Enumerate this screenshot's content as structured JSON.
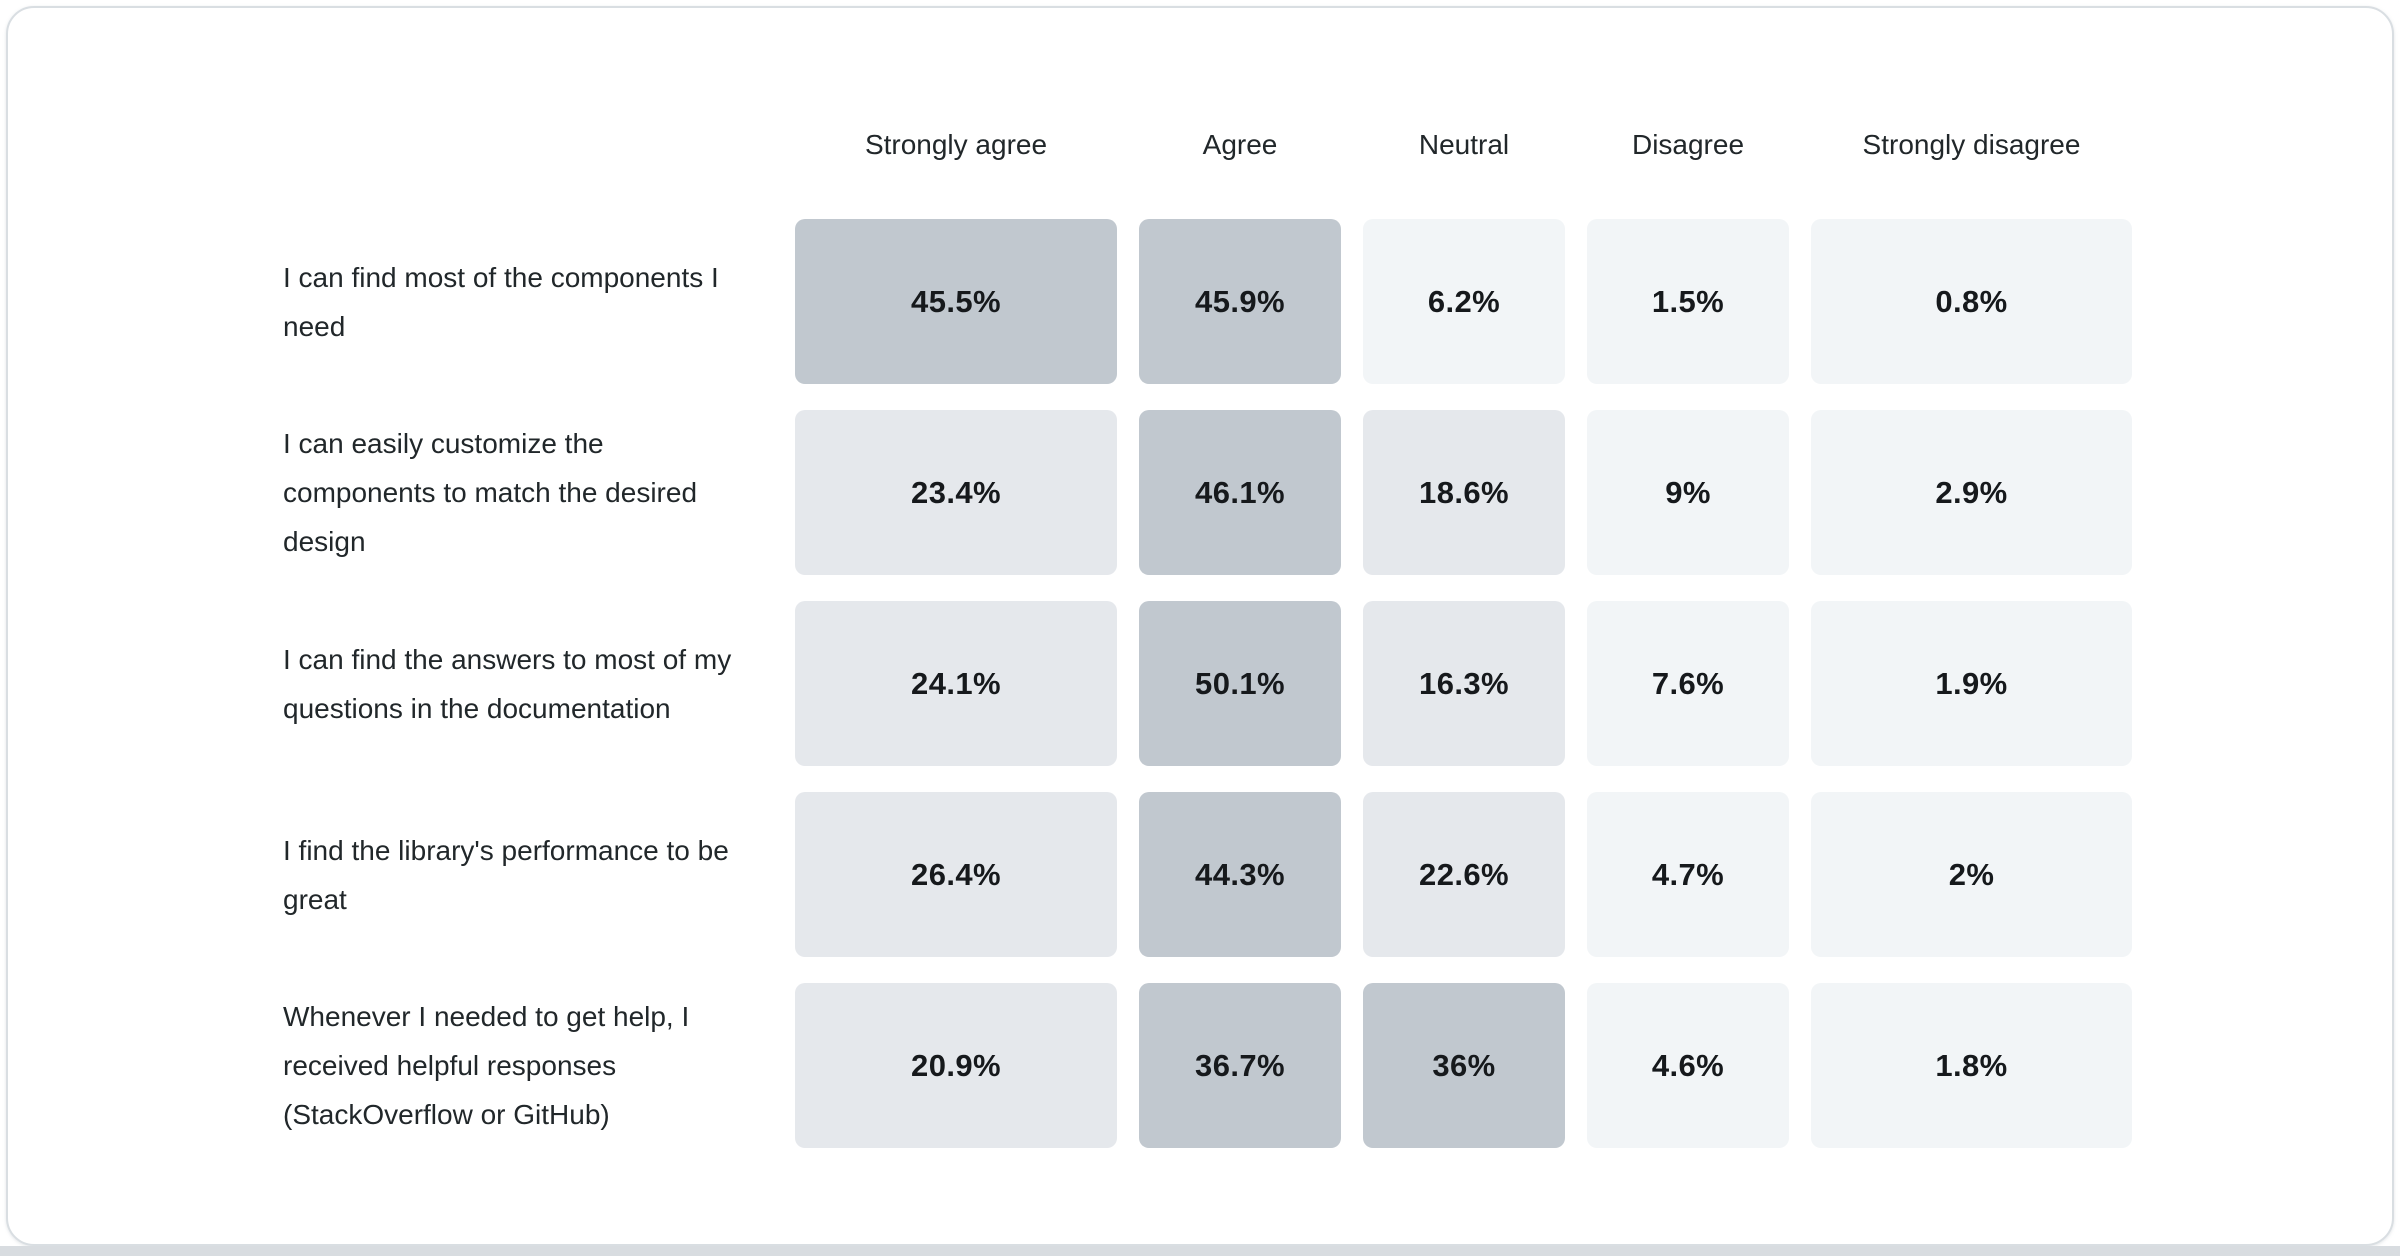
{
  "page": {
    "card_background": "#ffffff",
    "card_border_color": "#d9dee2",
    "bottom_strip_color": "#d8dce0",
    "header_text_color": "#21272a",
    "value_text_color": "#16191c"
  },
  "chart_data": {
    "type": "heatmap",
    "title": "",
    "columns": [
      "Strongly agree",
      "Agree",
      "Neutral",
      "Disagree",
      "Strongly disagree"
    ],
    "rows": [
      {
        "label": "I can find most of the components I need",
        "values": [
          45.5,
          45.9,
          6.2,
          1.5,
          0.8
        ],
        "display": [
          "45.5%",
          "45.9%",
          "6.2%",
          "1.5%",
          "0.8%"
        ],
        "buckets": [
          "dark",
          "dark",
          "light",
          "light",
          "light"
        ]
      },
      {
        "label": "I can easily customize the components to match the desired design",
        "values": [
          23.4,
          46.1,
          18.6,
          9,
          2.9
        ],
        "display": [
          "23.4%",
          "46.1%",
          "18.6%",
          "9%",
          "2.9%"
        ],
        "buckets": [
          "medium",
          "dark",
          "medium",
          "light",
          "light"
        ]
      },
      {
        "label": "I can find the answers to most of my questions in the documentation",
        "values": [
          24.1,
          50.1,
          16.3,
          7.6,
          1.9
        ],
        "display": [
          "24.1%",
          "50.1%",
          "16.3%",
          "7.6%",
          "1.9%"
        ],
        "buckets": [
          "medium",
          "dark",
          "medium",
          "light",
          "light"
        ]
      },
      {
        "label": "I find the library's performance to be great",
        "values": [
          26.4,
          44.3,
          22.6,
          4.7,
          2
        ],
        "display": [
          "26.4%",
          "44.3%",
          "22.6%",
          "4.7%",
          "2%"
        ],
        "buckets": [
          "medium",
          "dark",
          "medium",
          "light",
          "light"
        ]
      },
      {
        "label": "Whenever I needed to get help, I received helpful responses (StackOverflow or GitHub)",
        "values": [
          20.9,
          36.7,
          36,
          4.6,
          1.8
        ],
        "display": [
          "20.9%",
          "36.7%",
          "36%",
          "4.6%",
          "1.8%"
        ],
        "buckets": [
          "medium",
          "dark",
          "dark",
          "light",
          "light"
        ]
      }
    ],
    "color_scale": {
      "light": "#f2f5f7",
      "medium": "#e5e8ec",
      "dark": "#c1c8cf"
    },
    "layout_hints": {
      "grid": "off",
      "legend": "none",
      "value_labels": "inside-cells",
      "scale_note": "quantized shading: <10% light, 10-30% medium, 30-55% dark"
    }
  }
}
